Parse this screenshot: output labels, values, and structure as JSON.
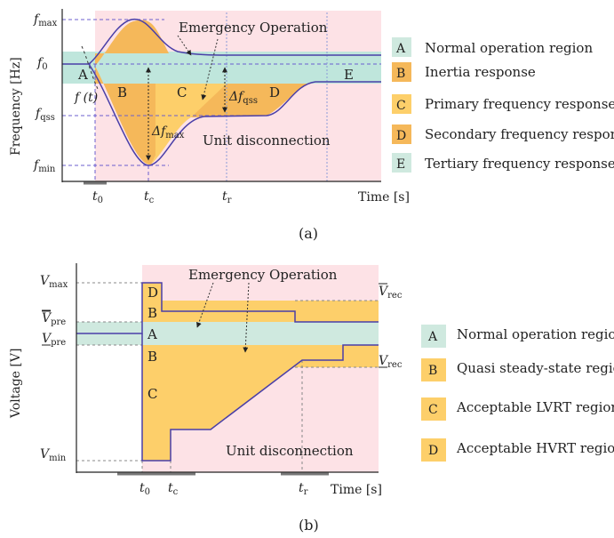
{
  "colors": {
    "emergency_bg": "#fde2e6",
    "normal_band": "#bfe6dc",
    "orange": "#f5b85a",
    "yellow": "#fdcf6a",
    "curve": "#4a3fa8",
    "dashed": "#6b5fcf",
    "green_legend": "#cfe9df"
  },
  "panel_a": {
    "emergency_label": "Emergency Operation",
    "unit_disconnection": "Unit disconnection",
    "y_axis_label": "Frequency [Hz]",
    "x_axis_label": "Time [s]",
    "y_ticks": {
      "fmax": {
        "base": "f",
        "sub": "max"
      },
      "f0": {
        "base": "f",
        "sub": "0"
      },
      "fqss": {
        "base": "f",
        "sub": "qss"
      },
      "fmin": {
        "base": "f",
        "sub": "min"
      }
    },
    "x_ticks": {
      "t0": {
        "base": "t",
        "sub": "0"
      },
      "tc": {
        "base": "t",
        "sub": "c"
      },
      "tr": {
        "base": "t",
        "sub": "r"
      }
    },
    "ft_label": "f (t)",
    "delta_fmax": {
      "base": "Δf",
      "sub": "max"
    },
    "delta_fqss": {
      "base": "Δf",
      "sub": "qss"
    },
    "region_letters": {
      "A": "A",
      "B": "B",
      "C": "C",
      "D": "D",
      "E": "E"
    },
    "legend": [
      {
        "key": "A",
        "label": "Normal operation region",
        "color": "#bfe6dc"
      },
      {
        "key": "B",
        "label": "Inertia response",
        "color": "#f5b85a"
      },
      {
        "key": "C",
        "label": "Primary frequency response",
        "color": "#fdcf6a"
      },
      {
        "key": "D",
        "label": "Secondary frequency response",
        "color": "#f5b85a"
      },
      {
        "key": "E",
        "label": "Tertiary frequency response",
        "color": "#cfe9df"
      }
    ],
    "caption": "(a)"
  },
  "panel_b": {
    "emergency_label": "Emergency Operation",
    "unit_disconnection": "Unit disconnection",
    "y_axis_label": "Voltage [V]",
    "x_axis_label": "Time [s]",
    "y_ticks": {
      "vmax": {
        "base": "V",
        "sub": "max"
      },
      "vpre_upper": {
        "base": "V",
        "sub": "pre"
      },
      "vpre_lower": {
        "base": "V",
        "sub": "pre"
      },
      "vmin": {
        "base": "V",
        "sub": "min"
      }
    },
    "right_ticks": {
      "vrec_upper": {
        "base": "V",
        "sub": "rec"
      },
      "vrec_lower": {
        "base": "V",
        "sub": "rec"
      }
    },
    "x_ticks": {
      "t0": {
        "base": "t",
        "sub": "0"
      },
      "tc": {
        "base": "t",
        "sub": "c"
      },
      "tr": {
        "base": "t",
        "sub": "r"
      }
    },
    "region_letters": {
      "A": "A",
      "B_top": "B",
      "B_bottom": "B",
      "C": "C",
      "D": "D"
    },
    "legend": [
      {
        "key": "A",
        "label": "Normal operation region",
        "color": "#cfe9df"
      },
      {
        "key": "B",
        "label": "Quasi steady-state region",
        "color": "#fdcf6a"
      },
      {
        "key": "C",
        "label": "Acceptable LVRT region",
        "color": "#fdcf6a"
      },
      {
        "key": "D",
        "label": "Acceptable HVRT region",
        "color": "#fdcf6a"
      }
    ],
    "caption": "(b)"
  }
}
